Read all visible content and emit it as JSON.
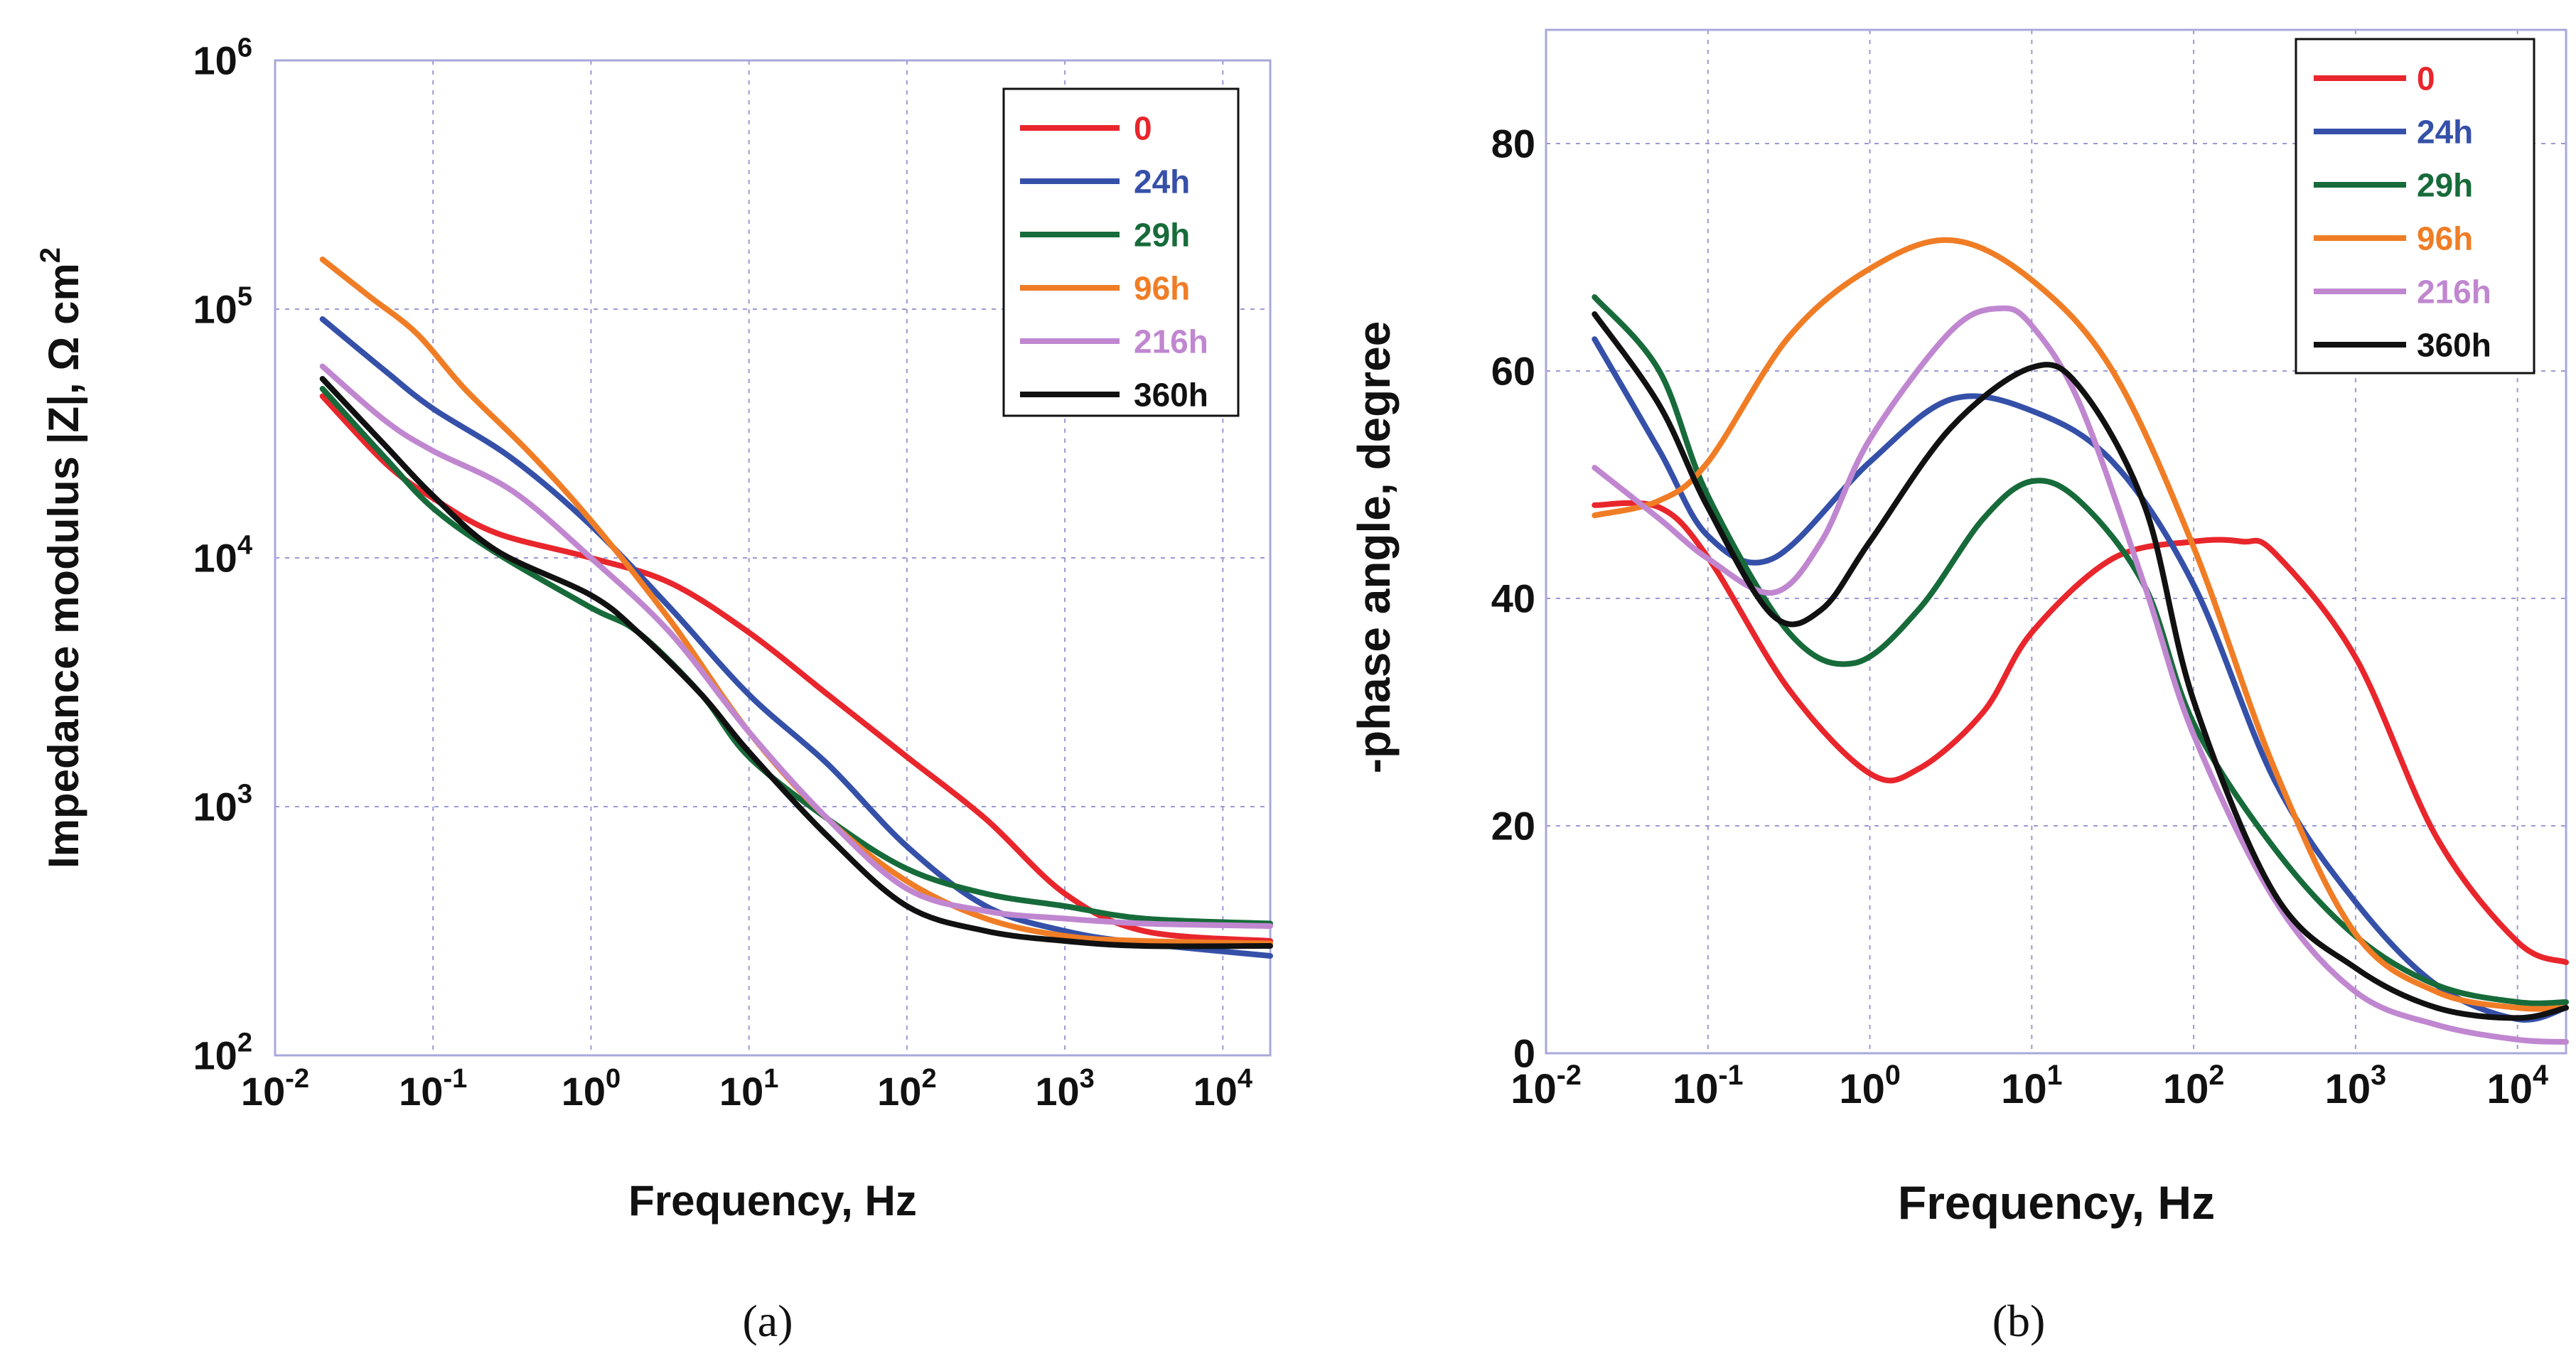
{
  "figure": {
    "captions": [
      "(a)",
      "(b)"
    ]
  },
  "series_colors": {
    "0": "#e8262c",
    "24h": "#3550a8",
    "29h": "#176b3a",
    "96h": "#f07d25",
    "216h": "#c087d0",
    "360h": "#111111"
  },
  "chart_data": [
    {
      "id": "a",
      "type": "line",
      "caption": "(a)",
      "xlabel": "Frequency, Hz",
      "ylabel": "Impedance modulus |Z|, Ω cm",
      "ylabel_superscript": "2",
      "xscale": "log",
      "yscale": "log",
      "xlim_log10": [
        -2,
        4.3
      ],
      "ylim_log10": [
        2,
        6
      ],
      "x_tick_exponents": [
        "-2",
        "-1",
        "0",
        "1",
        "2",
        "3",
        "4"
      ],
      "y_tick_exponents": [
        "2",
        "3",
        "4",
        "5",
        "6"
      ],
      "tick_base": "10",
      "grid": true,
      "legend_position": "top-right",
      "series": [
        {
          "name": "0",
          "points": [
            [
              -1.7,
              4.65
            ],
            [
              -1.3,
              4.38
            ],
            [
              -1,
              4.24
            ],
            [
              -0.6,
              4.1
            ],
            [
              0,
              4
            ],
            [
              0.5,
              3.9
            ],
            [
              1,
              3.7
            ],
            [
              1.5,
              3.45
            ],
            [
              2,
              3.2
            ],
            [
              2.5,
              2.95
            ],
            [
              3,
              2.65
            ],
            [
              3.5,
              2.5
            ],
            [
              4.3,
              2.46
            ]
          ]
        },
        {
          "name": "24h",
          "points": [
            [
              -1.7,
              4.96
            ],
            [
              -1.3,
              4.75
            ],
            [
              -1,
              4.6
            ],
            [
              -0.5,
              4.4
            ],
            [
              0,
              4.13
            ],
            [
              0.5,
              3.8
            ],
            [
              1,
              3.45
            ],
            [
              1.5,
              3.17
            ],
            [
              2,
              2.84
            ],
            [
              2.5,
              2.6
            ],
            [
              3,
              2.5
            ],
            [
              3.5,
              2.45
            ],
            [
              4.3,
              2.4
            ]
          ]
        },
        {
          "name": "29h",
          "points": [
            [
              -1.7,
              4.68
            ],
            [
              -1.3,
              4.4
            ],
            [
              -1,
              4.2
            ],
            [
              -0.6,
              4.02
            ],
            [
              0,
              3.8
            ],
            [
              0.3,
              3.7
            ],
            [
              0.7,
              3.45
            ],
            [
              1,
              3.2
            ],
            [
              1.5,
              2.95
            ],
            [
              2,
              2.75
            ],
            [
              2.5,
              2.65
            ],
            [
              3,
              2.6
            ],
            [
              3.5,
              2.55
            ],
            [
              4.3,
              2.53
            ]
          ]
        },
        {
          "name": "96h",
          "points": [
            [
              -1.7,
              5.2
            ],
            [
              -1.4,
              5.05
            ],
            [
              -1.1,
              4.9
            ],
            [
              -0.8,
              4.68
            ],
            [
              -0.4,
              4.43
            ],
            [
              0,
              4.15
            ],
            [
              0.5,
              3.75
            ],
            [
              1,
              3.3
            ],
            [
              1.5,
              2.95
            ],
            [
              2,
              2.7
            ],
            [
              2.5,
              2.55
            ],
            [
              3,
              2.48
            ],
            [
              3.5,
              2.46
            ],
            [
              4.3,
              2.45
            ]
          ]
        },
        {
          "name": "216h",
          "points": [
            [
              -1.7,
              4.77
            ],
            [
              -1.3,
              4.55
            ],
            [
              -1,
              4.43
            ],
            [
              -0.5,
              4.27
            ],
            [
              0,
              4
            ],
            [
              0.5,
              3.7
            ],
            [
              1,
              3.3
            ],
            [
              1.5,
              2.95
            ],
            [
              2,
              2.67
            ],
            [
              2.5,
              2.58
            ],
            [
              3,
              2.55
            ],
            [
              3.5,
              2.53
            ],
            [
              4.3,
              2.52
            ]
          ]
        },
        {
          "name": "360h",
          "points": [
            [
              -1.7,
              4.72
            ],
            [
              -1.3,
              4.45
            ],
            [
              -1,
              4.25
            ],
            [
              -0.6,
              4.03
            ],
            [
              0,
              3.85
            ],
            [
              0.3,
              3.7
            ],
            [
              0.7,
              3.45
            ],
            [
              1,
              3.22
            ],
            [
              1.5,
              2.88
            ],
            [
              2,
              2.6
            ],
            [
              2.5,
              2.5
            ],
            [
              3,
              2.46
            ],
            [
              3.5,
              2.44
            ],
            [
              4.3,
              2.44
            ]
          ]
        }
      ]
    },
    {
      "id": "b",
      "type": "line",
      "caption": "(b)",
      "xlabel": "Frequency, Hz",
      "ylabel": "-phase angle, degree",
      "xscale": "log",
      "yscale": "linear",
      "xlim_log10": [
        -2,
        4.3
      ],
      "ylim": [
        0,
        90
      ],
      "x_tick_exponents": [
        "-2",
        "-1",
        "0",
        "1",
        "2",
        "3",
        "4"
      ],
      "tick_base": "10",
      "y_ticks": [
        "0",
        "20",
        "40",
        "60",
        "80"
      ],
      "grid": true,
      "legend_position": "top-right",
      "series": [
        {
          "name": "0",
          "points": [
            [
              -1.7,
              48.2
            ],
            [
              -1.3,
              48
            ],
            [
              -1,
              43.6
            ],
            [
              -0.5,
              32
            ],
            [
              0,
              24.6
            ],
            [
              0.3,
              25
            ],
            [
              0.7,
              30
            ],
            [
              1,
              37
            ],
            [
              1.5,
              43.5
            ],
            [
              2,
              45
            ],
            [
              2.3,
              45
            ],
            [
              2.5,
              44
            ],
            [
              3,
              34.8
            ],
            [
              3.5,
              19
            ],
            [
              4,
              9.8
            ],
            [
              4.3,
              8
            ]
          ]
        },
        {
          "name": "24h",
          "points": [
            [
              -1.7,
              62.8
            ],
            [
              -1.3,
              53
            ],
            [
              -1,
              45.5
            ],
            [
              -0.6,
              43.5
            ],
            [
              0,
              52
            ],
            [
              0.5,
              57.5
            ],
            [
              1,
              56.5
            ],
            [
              1.5,
              52
            ],
            [
              2,
              41.2
            ],
            [
              2.5,
              24
            ],
            [
              3,
              13.3
            ],
            [
              3.5,
              6
            ],
            [
              4,
              3
            ],
            [
              4.3,
              4
            ]
          ]
        },
        {
          "name": "29h",
          "points": [
            [
              -1.7,
              66.5
            ],
            [
              -1.3,
              60
            ],
            [
              -1,
              49
            ],
            [
              -0.5,
              37
            ],
            [
              -0.1,
              34.3
            ],
            [
              0.3,
              39
            ],
            [
              0.7,
              47
            ],
            [
              1,
              50.3
            ],
            [
              1.3,
              48.5
            ],
            [
              1.7,
              41
            ],
            [
              2,
              29
            ],
            [
              2.5,
              18
            ],
            [
              3,
              10.3
            ],
            [
              3.5,
              6
            ],
            [
              4,
              4.5
            ],
            [
              4.3,
              4.5
            ]
          ]
        },
        {
          "name": "96h",
          "points": [
            [
              -1.7,
              47.3
            ],
            [
              -1.3,
              48.6
            ],
            [
              -1,
              52
            ],
            [
              -0.5,
              63
            ],
            [
              0,
              69
            ],
            [
              0.5,
              71.5
            ],
            [
              1,
              68
            ],
            [
              1.5,
              60
            ],
            [
              2,
              44.5
            ],
            [
              2.5,
              25
            ],
            [
              3,
              10.5
            ],
            [
              3.5,
              5.4
            ],
            [
              4,
              4
            ],
            [
              4.3,
              4
            ]
          ]
        },
        {
          "name": "216h",
          "points": [
            [
              -1.7,
              51.5
            ],
            [
              -1.3,
              47
            ],
            [
              -1,
              43.5
            ],
            [
              -0.6,
              40.5
            ],
            [
              -0.3,
              45
            ],
            [
              0,
              54
            ],
            [
              0.5,
              63.5
            ],
            [
              0.8,
              65.5
            ],
            [
              1,
              64
            ],
            [
              1.3,
              57
            ],
            [
              1.7,
              41
            ],
            [
              2,
              28
            ],
            [
              2.5,
              13.5
            ],
            [
              3,
              5.4
            ],
            [
              3.5,
              2.5
            ],
            [
              4,
              1.2
            ],
            [
              4.3,
              1
            ]
          ]
        },
        {
          "name": "360h",
          "points": [
            [
              -1.7,
              65
            ],
            [
              -1.3,
              57
            ],
            [
              -1,
              48
            ],
            [
              -0.6,
              38.5
            ],
            [
              -0.3,
              39
            ],
            [
              0,
              45
            ],
            [
              0.5,
              55
            ],
            [
              1,
              60.3
            ],
            [
              1.3,
              58.5
            ],
            [
              1.7,
              48
            ],
            [
              2,
              31
            ],
            [
              2.5,
              14
            ],
            [
              3,
              7.5
            ],
            [
              3.5,
              4
            ],
            [
              4,
              3.1
            ],
            [
              4.3,
              4
            ]
          ]
        }
      ]
    }
  ]
}
